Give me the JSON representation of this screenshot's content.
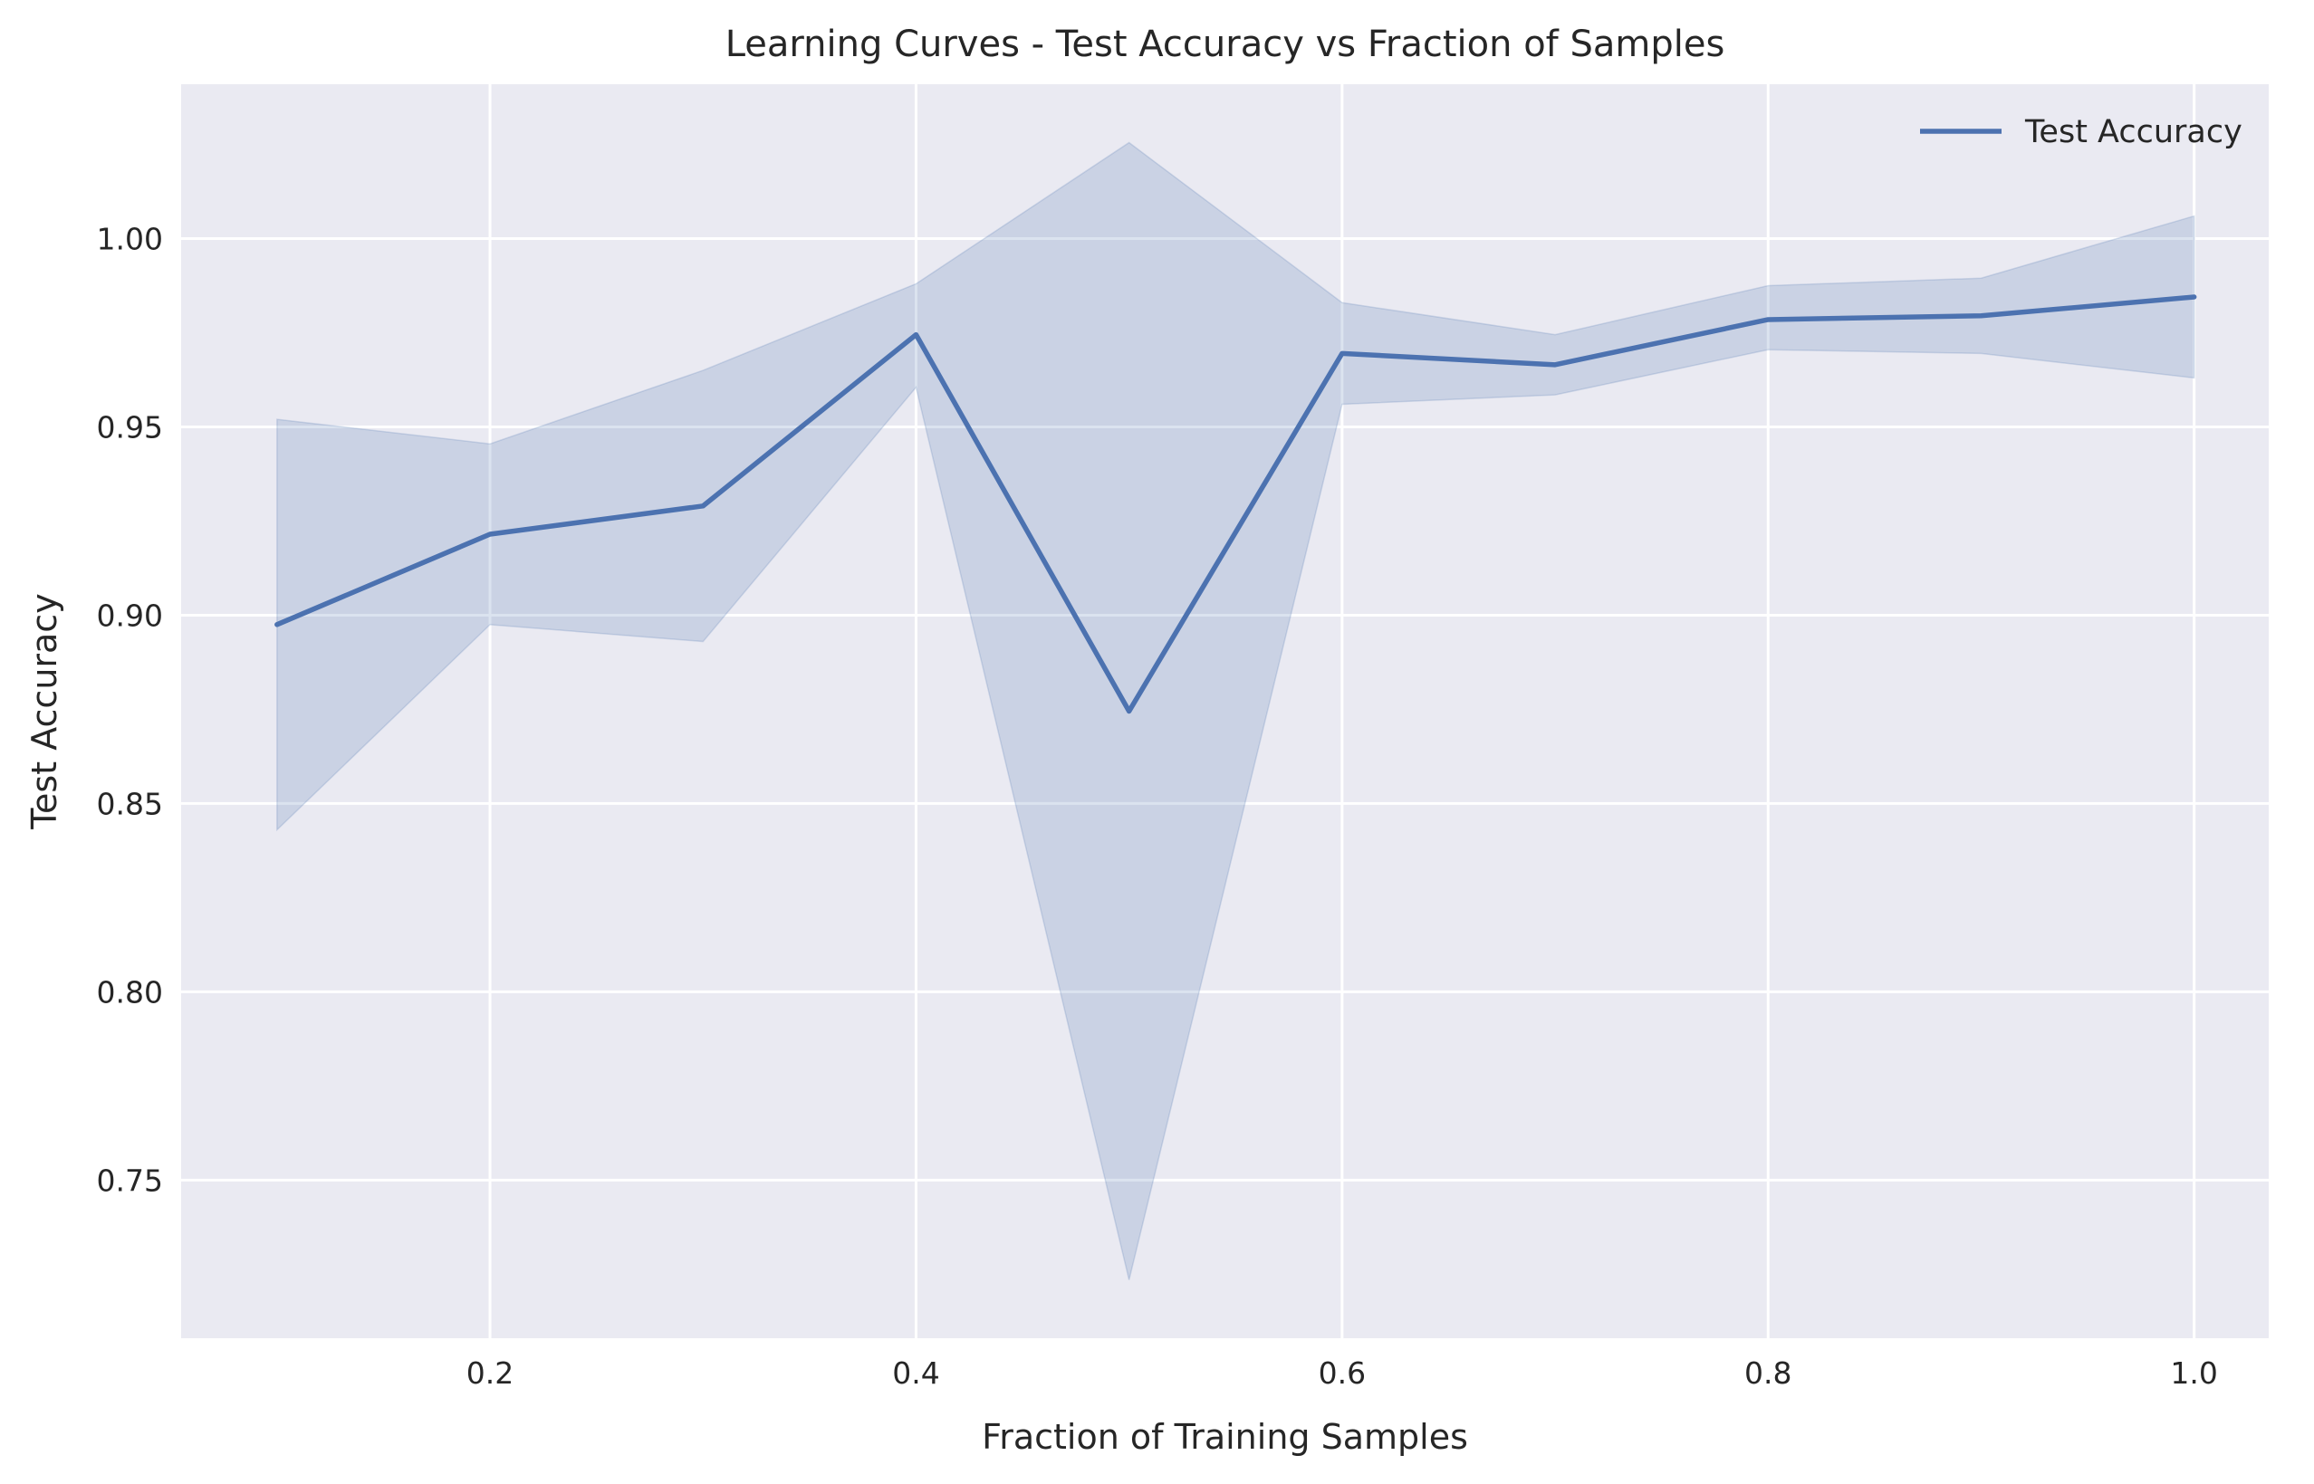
{
  "chart_data": {
    "type": "line",
    "title": "Learning Curves - Test Accuracy vs Fraction of Samples",
    "xlabel": "Fraction of Training Samples",
    "ylabel": "Test Accuracy",
    "x": [
      0.1,
      0.2,
      0.3,
      0.4,
      0.5,
      0.6,
      0.7,
      0.8,
      0.9,
      1.0
    ],
    "xlim": [
      0.055,
      1.035
    ],
    "ylim": [
      0.708,
      1.041
    ],
    "xticks": [
      0.2,
      0.4,
      0.6,
      0.8,
      1.0
    ],
    "xtick_labels": [
      "0.2",
      "0.4",
      "0.6",
      "0.8",
      "1.0"
    ],
    "yticks": [
      0.75,
      0.8,
      0.85,
      0.9,
      0.95,
      1.0
    ],
    "ytick_labels": [
      "0.75",
      "0.80",
      "0.85",
      "0.90",
      "0.95",
      "1.00"
    ],
    "grid": true,
    "legend_position": "top-right",
    "series": [
      {
        "name": "Test Accuracy",
        "color": "#4c72b0",
        "values": [
          0.8975,
          0.9215,
          0.929,
          0.9745,
          0.8745,
          0.9695,
          0.9665,
          0.9785,
          0.9795,
          0.9845
        ],
        "band_upper": [
          0.952,
          0.9455,
          0.965,
          0.988,
          1.0255,
          0.983,
          0.9745,
          0.9875,
          0.9895,
          1.006
        ],
        "band_lower": [
          0.843,
          0.8975,
          0.893,
          0.9605,
          0.7235,
          0.956,
          0.9585,
          0.9705,
          0.9695,
          0.963
        ]
      }
    ],
    "colors": {
      "plot_background": "#eaeaf2",
      "grid": "#ffffff",
      "band_fill": "#4c72b0"
    }
  }
}
